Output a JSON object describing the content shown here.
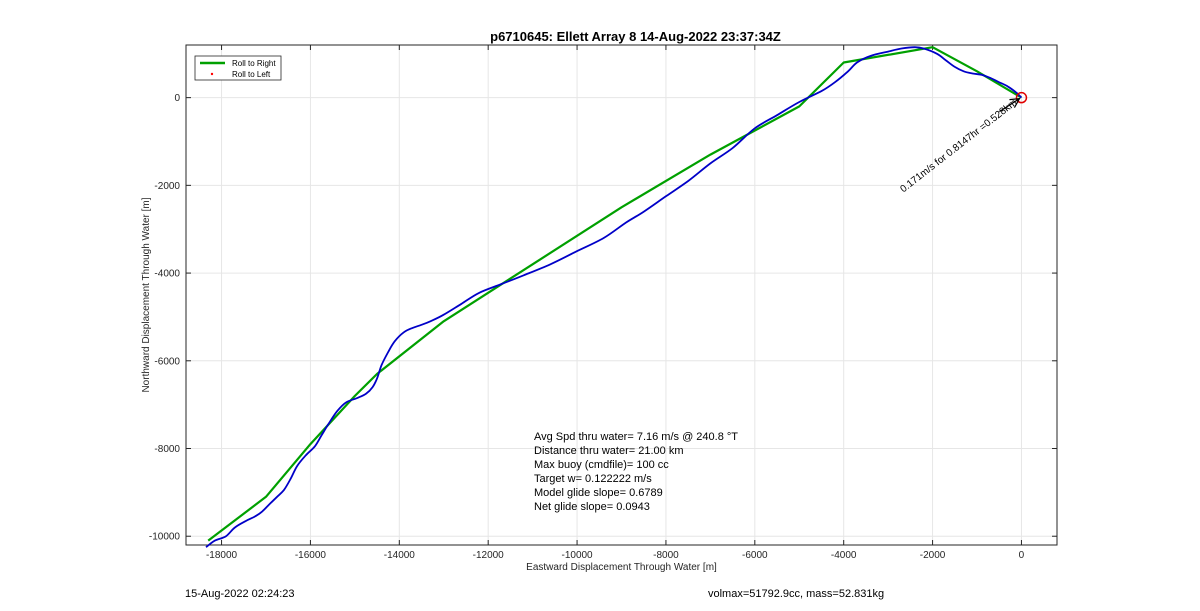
{
  "chart_data": {
    "type": "line",
    "title": "p6710645: Ellett Array 8 14-Aug-2022 23:37:34Z",
    "xlabel": "Eastward Displacement Through Water [m]",
    "ylabel": "Northward Displacement Through Water [m]",
    "xlim": [
      -18800,
      800
    ],
    "ylim": [
      -10200,
      1200
    ],
    "xticks": [
      -18000,
      -16000,
      -14000,
      -12000,
      -10000,
      -8000,
      -6000,
      -4000,
      -2000,
      0
    ],
    "yticks": [
      -10000,
      -8000,
      -6000,
      -4000,
      -2000,
      0
    ],
    "grid": true,
    "legend_position": "top-left",
    "legend": [
      {
        "label": "Roll to Right",
        "color": "#00a000",
        "marker": "line"
      },
      {
        "label": "Roll to Left",
        "color": "#ff0000",
        "marker": "dot"
      }
    ],
    "series": [
      {
        "name": "Roll to Right",
        "color": "#00a000",
        "x": [
          -18300,
          -17000,
          -16000,
          -15000,
          -14500,
          -13000,
          -11000,
          -9000,
          -7000,
          -5000,
          -4000,
          -2000,
          -1000,
          0
        ],
        "y": [
          -10100,
          -9100,
          -7900,
          -6800,
          -6300,
          -5100,
          -3800,
          -2500,
          -1300,
          -200,
          800,
          1150,
          600,
          0
        ]
      },
      {
        "name": "",
        "color": "#0000c8",
        "x": [
          -18350,
          -18150,
          -17900,
          -17700,
          -17450,
          -17250,
          -17100,
          -16900,
          -16750,
          -16600,
          -16450,
          -16300,
          -16100,
          -15900,
          -15750,
          -15600,
          -15400,
          -15200,
          -14950,
          -14750,
          -14600,
          -14500,
          -14400,
          -14250,
          -14100,
          -13900,
          -13700,
          -13500,
          -13300,
          -13000,
          -12600,
          -12200,
          -11700,
          -11200,
          -10600,
          -10000,
          -9400,
          -8900,
          -8500,
          -8000,
          -7500,
          -7000,
          -6500,
          -6000,
          -5500,
          -5000,
          -4500,
          -4200,
          -3900,
          -3700,
          -3400,
          -3000,
          -2700,
          -2400,
          -2200,
          -1900,
          -1700,
          -1500,
          -1300,
          -1100,
          -900,
          -700,
          -500,
          -300,
          -100,
          0
        ],
        "y": [
          -10250,
          -10100,
          -10000,
          -9800,
          -9650,
          -9550,
          -9450,
          -9250,
          -9100,
          -8950,
          -8700,
          -8400,
          -8150,
          -7950,
          -7700,
          -7450,
          -7150,
          -6950,
          -6850,
          -6750,
          -6600,
          -6400,
          -6100,
          -5800,
          -5550,
          -5350,
          -5250,
          -5180,
          -5100,
          -4950,
          -4700,
          -4450,
          -4250,
          -4050,
          -3800,
          -3500,
          -3200,
          -2850,
          -2600,
          -2250,
          -1900,
          -1500,
          -1150,
          -700,
          -400,
          -100,
          150,
          350,
          600,
          800,
          950,
          1050,
          1120,
          1150,
          1120,
          1000,
          850,
          700,
          600,
          550,
          520,
          450,
          350,
          250,
          100,
          0
        ]
      }
    ],
    "annotations": [
      {
        "text": "Avg Spd thru water=  7.16 m/s @ 240.8 °T"
      },
      {
        "text": "Distance thru water= 21.00 km"
      },
      {
        "text": "Max buoy (cmdfile)= 100 cc"
      },
      {
        "text": "Target w= 0.122222 m/s"
      },
      {
        "text": "Model glide slope= 0.6789"
      },
      {
        "text": "Net glide slope= 0.0943"
      }
    ],
    "current_arrow": {
      "text": "0.171m/s for 0.8147hr =0.528km",
      "x": 0,
      "y": 0,
      "rotation": 142,
      "marker_color": "#e00000"
    }
  },
  "footer": {
    "left": "15-Aug-2022 02:24:23",
    "right": "volmax=51792.9cc, mass=52.831kg"
  }
}
